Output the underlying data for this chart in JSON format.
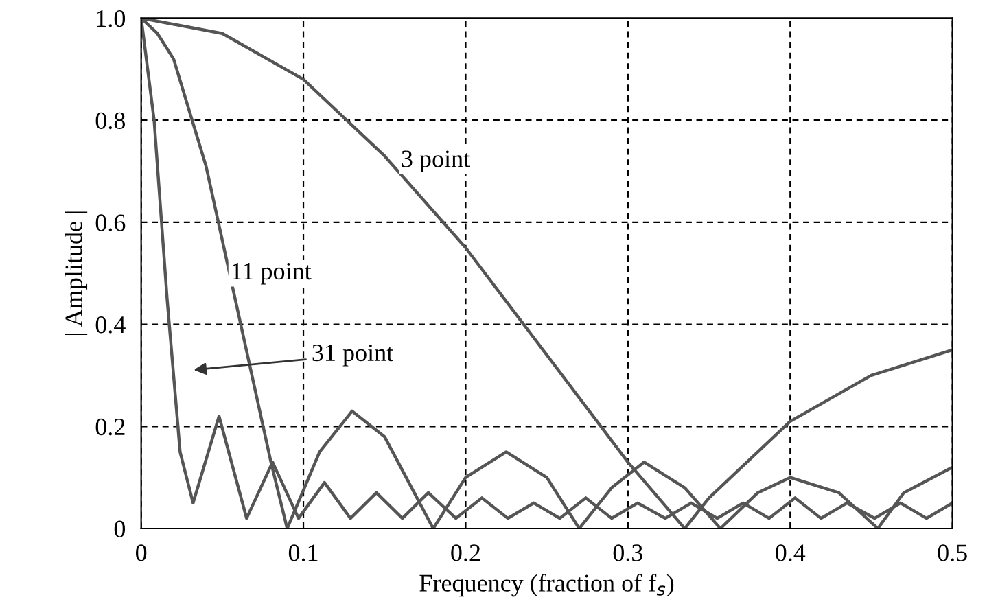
{
  "chart_data": {
    "type": "line",
    "xlabel": "Frequency (fraction of f$_{s}$)",
    "ylabel": "| Amplitude |",
    "xlim": [
      0,
      0.5
    ],
    "ylim": [
      0,
      1.0
    ],
    "xticks": [
      0,
      0.1,
      0.2,
      0.3,
      0.4,
      0.5
    ],
    "yticks": [
      0,
      0.2,
      0.4,
      0.6,
      0.8,
      {
        "value": 1,
        "label": "1.0"
      }
    ],
    "grid": true,
    "line_style": "solid",
    "marker": "none",
    "series": [
      {
        "color": "#555555",
        "x": [
          0,
          0.05,
          0.1,
          0.15,
          0.2,
          0.25,
          0.3,
          0.335,
          0.35,
          0.4,
          0.45,
          0.5
        ],
        "values": [
          1,
          0.97,
          0.88,
          0.73,
          0.55,
          0.34,
          0.13,
          0,
          0.06,
          0.21,
          0.3,
          0.35
        ]
      },
      {
        "color": "#555555",
        "x": [
          0,
          0.01,
          0.02,
          0.04,
          0.06,
          0.08,
          0.09,
          0.11,
          0.13,
          0.15,
          0.18,
          0.2,
          0.225,
          0.25,
          0.27,
          0.29,
          0.31,
          0.335,
          0.357,
          0.38,
          0.4,
          0.43,
          0.454,
          0.47,
          0.5
        ],
        "values": [
          1,
          0.97,
          0.92,
          0.71,
          0.42,
          0.13,
          0,
          0.15,
          0.23,
          0.18,
          0,
          0.1,
          0.15,
          0.1,
          0,
          0.08,
          0.13,
          0.08,
          0,
          0.07,
          0.1,
          0.07,
          0,
          0.07,
          0.12
        ]
      },
      {
        "color": "#555555",
        "x": [
          0,
          0.008,
          0.016,
          0.024,
          0.032,
          0.048,
          0.065,
          0.081,
          0.097,
          0.113,
          0.129,
          0.145,
          0.161,
          0.177,
          0.194,
          0.21,
          0.226,
          0.242,
          0.258,
          0.274,
          0.29,
          0.306,
          0.323,
          0.339,
          0.355,
          0.371,
          0.387,
          0.403,
          0.419,
          0.435,
          0.452,
          0.468,
          0.484,
          0.5
        ],
        "values": [
          1,
          0.8,
          0.45,
          0.15,
          0.05,
          0.22,
          0.02,
          0.13,
          0.02,
          0.09,
          0.02,
          0.07,
          0.02,
          0.07,
          0.02,
          0.06,
          0.02,
          0.05,
          0.02,
          0.06,
          0.02,
          0.05,
          0.02,
          0.05,
          0.02,
          0.05,
          0.02,
          0.06,
          0.02,
          0.05,
          0.02,
          0.05,
          0.02,
          0.05
        ]
      }
    ],
    "annotations": [
      "3 point",
      "11 point",
      "31 point"
    ]
  }
}
